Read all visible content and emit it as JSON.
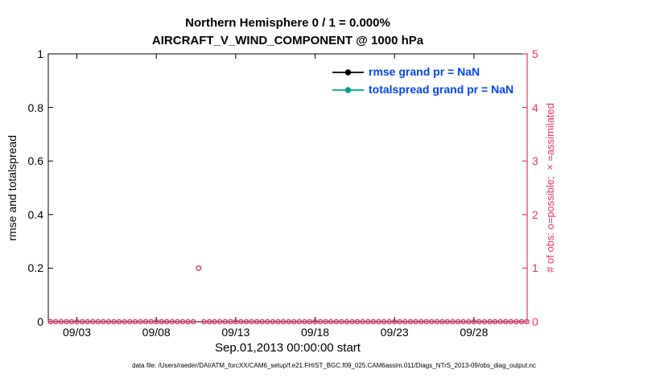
{
  "figure": {
    "title_line1": "Northern Hemisphere 0 / 1 = 0.000%",
    "title_line2": "AIRCRAFT_V_WIND_COMPONENT @ 1000 hPa",
    "footer": "data file: /Users/raeder/DAI/ATM_forcXX/CAM6_setup/f.e21.FHIST_BGC.f09_025.CAM6assim.011/Diags_NTrS_2013-09/obs_diag_output.nc"
  },
  "colors": {
    "obs_magenta": "#e8336e",
    "totalspread_teal": "#00a08a",
    "rmse_black": "#000000",
    "legend_text_blue": "#0044ff",
    "frame_black": "#000000"
  },
  "legend": {
    "entries": [
      {
        "label": "rmse grand pr = NaN",
        "color": "#000000"
      },
      {
        "label": "totalspread grand pr = NaN",
        "color": "#00a08a"
      }
    ]
  },
  "chart_data": {
    "type": "scatter",
    "title": "Northern Hemisphere 0 / 1 = 0.000% — AIRCRAFT_V_WIND_COMPONENT @ 1000 hPa",
    "x_axis": {
      "label": "Sep.01,2013 00:00:00 start",
      "ticks": [
        {
          "label": "09/03",
          "day": 3
        },
        {
          "label": "09/08",
          "day": 8
        },
        {
          "label": "09/13",
          "day": 13
        },
        {
          "label": "09/18",
          "day": 18
        },
        {
          "label": "09/23",
          "day": 23
        },
        {
          "label": "09/28",
          "day": 28
        }
      ],
      "min_day": 1.2,
      "max_day": 31.35
    },
    "left_axis": {
      "label": "rmse and totalspread",
      "min": 0,
      "max": 1,
      "ticks": [
        "0",
        "0.2",
        "0.4",
        "0.6",
        "0.8",
        "1"
      ],
      "tick_values": [
        0,
        0.2,
        0.4,
        0.6,
        0.8,
        1
      ]
    },
    "right_axis": {
      "label": "# of obs: o=possible; ×=assimilated",
      "min": 0,
      "max": 5,
      "ticks": [
        "0",
        "1",
        "2",
        "3",
        "4",
        "5"
      ],
      "tick_values": [
        0,
        1,
        2,
        3,
        4,
        5
      ]
    },
    "series": [
      {
        "name": "rmse",
        "legend": "rmse grand pr = NaN",
        "axis": "left",
        "marker": "filled-circle",
        "color": "#000000",
        "points": []
      },
      {
        "name": "totalspread",
        "legend": "totalspread grand pr = NaN",
        "axis": "left",
        "marker": "filled-circle",
        "color": "#00a08a",
        "points": []
      },
      {
        "name": "possible-obs",
        "axis": "right",
        "marker": "open-circle",
        "color": "#e8336e",
        "zero_run": {
          "start_day": 1.3333,
          "end_day": 31.34,
          "step_day": 0.3333,
          "value": 0,
          "skip_days": [
            10.6667
          ]
        },
        "points": [
          {
            "day": 10.6667,
            "value": 1
          }
        ]
      }
    ],
    "grid": false,
    "legend_position": "upper-right-inside"
  }
}
